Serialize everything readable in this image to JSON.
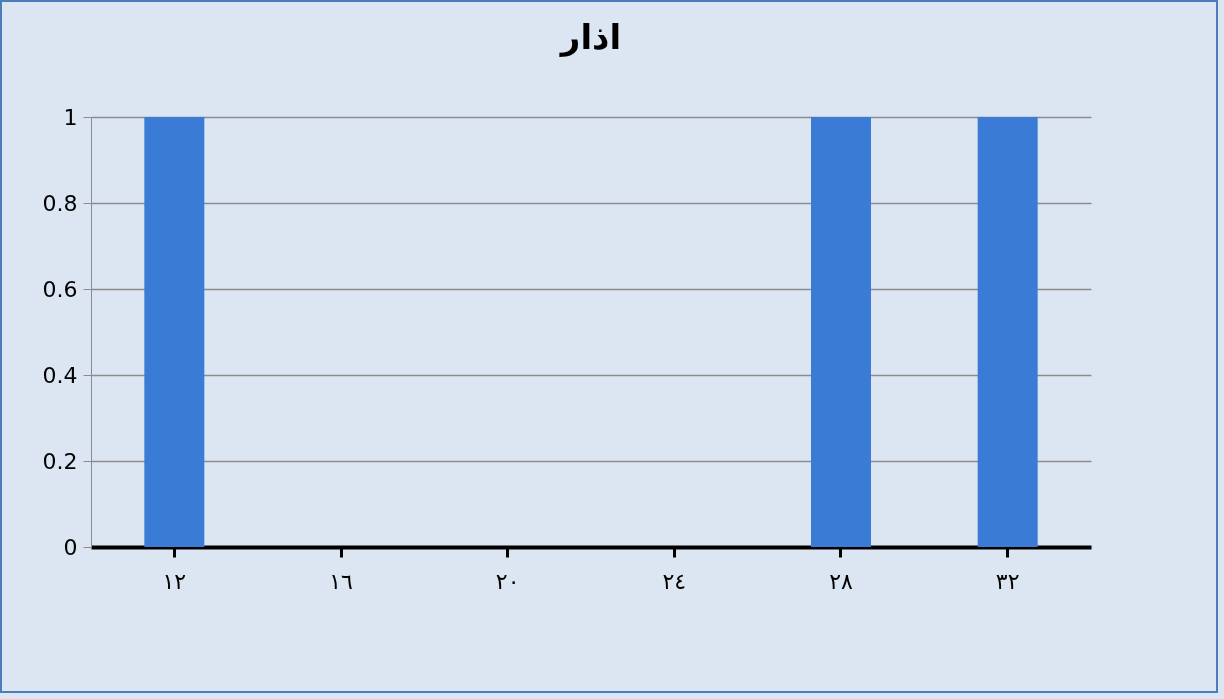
{
  "chart_data": {
    "type": "bar",
    "title": "اذار",
    "categories": [
      "١٢",
      "١٦",
      "٢٠",
      "٢٤",
      "٢٨",
      "٣٢"
    ],
    "values": [
      1,
      0,
      0,
      0,
      1,
      1
    ],
    "color": "#3a7bd5",
    "ylim": [
      0,
      1
    ],
    "yticks": [
      0,
      0.2,
      0.4,
      0.6,
      0.8,
      1
    ],
    "grid": "y"
  }
}
